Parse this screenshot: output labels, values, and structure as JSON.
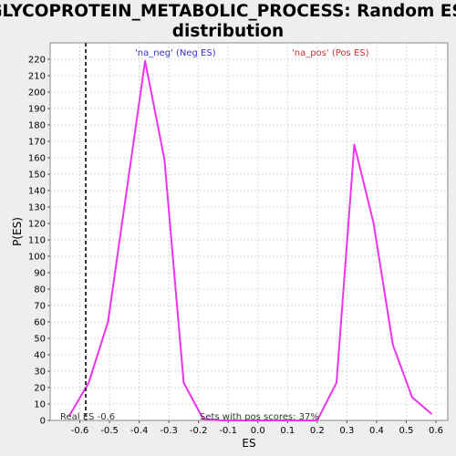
{
  "chart_data": {
    "type": "line",
    "title": "GLYCOPROTEIN_METABOLIC_PROCESS: Random ES distribution",
    "title_lines": [
      "GLYCOPROTEIN_METABOLIC_PROCESS: Random ES",
      "distribution"
    ],
    "xlabel": "ES",
    "ylabel": "P(ES)",
    "xlim": [
      -0.7,
      0.64
    ],
    "ylim": [
      0,
      230
    ],
    "xticks": [
      -0.6,
      -0.5,
      -0.4,
      -0.3,
      -0.2,
      -0.1,
      0.0,
      0.1,
      0.2,
      0.3,
      0.4,
      0.5,
      0.6
    ],
    "xtick_labels": [
      "-0.6",
      "-0.5",
      "-0.4",
      "-0.3",
      "-0.2",
      "-0.1",
      "0.0",
      "0.1",
      "0.2",
      "0.3",
      "0.4",
      "0.5",
      "0.6"
    ],
    "yticks": [
      0,
      10,
      20,
      30,
      40,
      50,
      60,
      70,
      80,
      90,
      100,
      110,
      120,
      130,
      140,
      150,
      160,
      170,
      180,
      190,
      200,
      210,
      220
    ],
    "grid": true,
    "series": [
      {
        "color": "#ee33ee",
        "x": [
          -0.635,
          -0.57,
          -0.505,
          -0.38,
          -0.315,
          -0.25,
          -0.185,
          -0.12,
          0.2,
          0.265,
          0.325,
          0.39,
          0.455,
          0.52,
          0.585
        ],
        "y": [
          3,
          23,
          60,
          219,
          159,
          23,
          1,
          0,
          0,
          23,
          168,
          120,
          46,
          14,
          4
        ]
      }
    ],
    "reference_line": {
      "x": -0.58,
      "label": "Real ES -0.6",
      "style": "dashed",
      "color": "#333333"
    },
    "annotations": {
      "neg": "'na_neg' (Neg ES)",
      "pos": "'na_pos' (Pos ES)",
      "sets_pos": "Sets with pos scores: 37%"
    },
    "colors": {
      "background": "#eeeeee",
      "plot_background": "#ffffff",
      "grid": "#d8d8d8",
      "neg": "#3333cc",
      "pos": "#cc3333"
    }
  }
}
